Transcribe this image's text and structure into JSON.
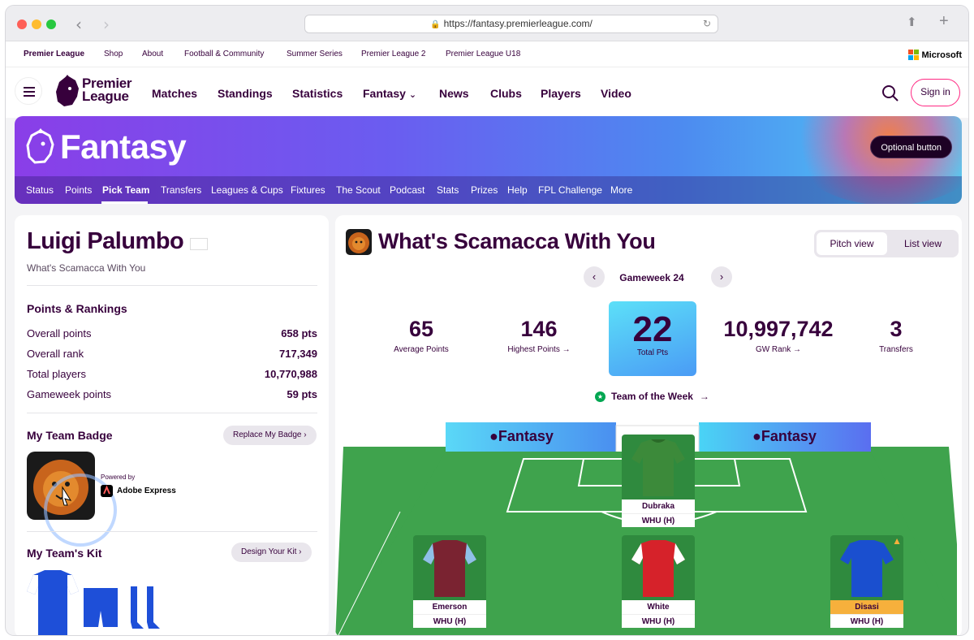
{
  "browser": {
    "url": "https://fantasy.premierleague.com/"
  },
  "topbar": {
    "links": [
      "Premier League",
      "Shop",
      "About",
      "Football & Community",
      "Summer Series",
      "Premier League 2",
      "Premier League U18"
    ],
    "partner": "Microsoft"
  },
  "mainnav": {
    "logo_line1": "Premier",
    "logo_line2": "League",
    "links": [
      "Matches",
      "Standings",
      "Statistics",
      "Fantasy",
      "News",
      "Clubs",
      "Players",
      "Video"
    ],
    "sign_in": "Sign in"
  },
  "banner": {
    "title": "Fantasy",
    "optional_button": "Optional button",
    "subnav": [
      "Status",
      "Points",
      "Pick Team",
      "Transfers",
      "Leagues & Cups",
      "Fixtures",
      "The Scout",
      "Podcast",
      "Stats",
      "Prizes",
      "Help",
      "FPL Challenge",
      "More"
    ],
    "active_tab": "Pick Team"
  },
  "manager": {
    "name": "Luigi Palumbo",
    "team": "What's Scamacca With You",
    "rankings_title": "Points & Rankings",
    "stats": [
      {
        "label": "Overall points",
        "value": "658 pts"
      },
      {
        "label": "Overall rank",
        "value": "717,349"
      },
      {
        "label": "Total players",
        "value": "10,770,988"
      },
      {
        "label": "Gameweek points",
        "value": "59 pts"
      }
    ],
    "badge_title": "My Team Badge",
    "replace_badge": "Replace My Badge",
    "powered_by": "Powered by",
    "adobe": "Adobe Express",
    "kit_title": "My Team's Kit",
    "design_kit": "Design Your Kit"
  },
  "team": {
    "title": "What's Scamacca With You",
    "pitch_view": "Pitch view",
    "list_view": "List view",
    "gameweek": "Gameweek 24",
    "stats": [
      {
        "value": "65",
        "label": "Average Points"
      },
      {
        "value": "146",
        "label": "Highest Points →"
      },
      {
        "value": "10,997,742",
        "label": "GW Rank →"
      },
      {
        "value": "3",
        "label": "Transfers"
      }
    ],
    "total_value": "22",
    "total_label": "Total Pts",
    "team_of_week": "Team of the Week",
    "pitch_brand": "Fantasy",
    "players": [
      {
        "name": "Dubraka",
        "fixture": "WHU (H)",
        "kit": "#3c8a3a"
      },
      {
        "name": "Emerson",
        "fixture": "WHU (H)",
        "kit": "#7a2331"
      },
      {
        "name": "White",
        "fixture": "WHU (H)",
        "kit": "#d6222a"
      },
      {
        "name": "Disasi",
        "fixture": "WHU (H)",
        "kit": "#1a4fcf"
      }
    ]
  },
  "colors": {
    "brand": "#37003c",
    "accent": "#ff2882",
    "pitch": "#3fa34d",
    "kit": "#1e4fd8"
  }
}
